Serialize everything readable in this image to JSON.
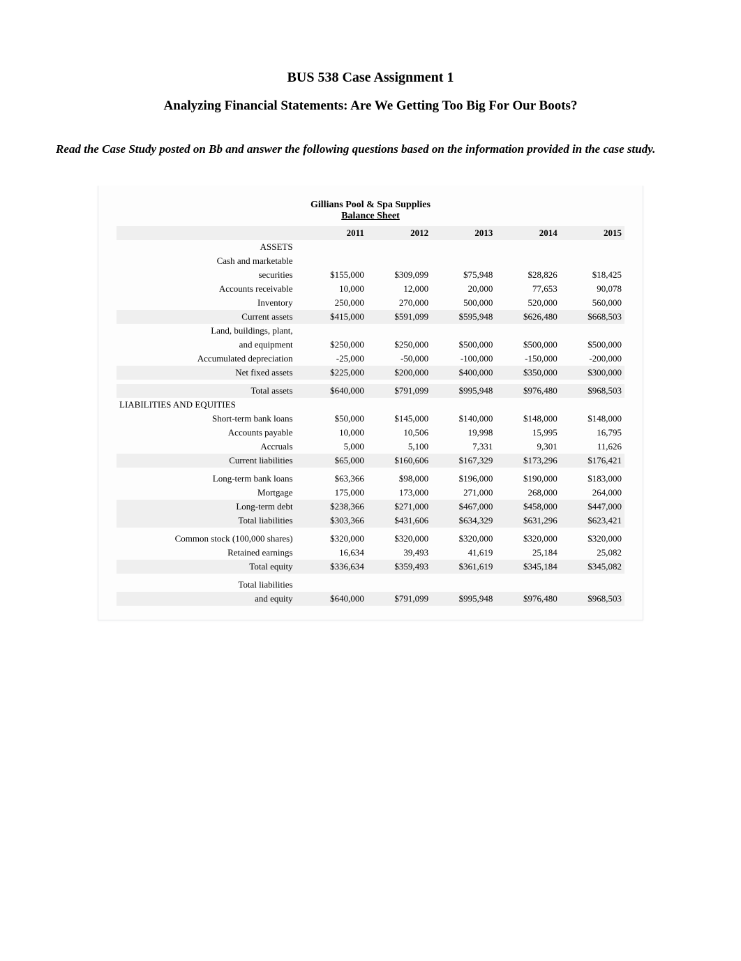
{
  "doc": {
    "title": "BUS 538 Case Assignment 1",
    "subtitle": "Analyzing Financial Statements: Are We Getting Too Big For Our Boots?",
    "instructions": "Read the Case Study posted on Bb and answer the following questions based on the information provided in the case study."
  },
  "sheet": {
    "company": "Gillians Pool & Spa Supplies",
    "heading": "Balance Sheet",
    "years": [
      "2011",
      "2012",
      "2013",
      "2014",
      "2015"
    ],
    "assets_label": "ASSETS",
    "liab_label": "LIABILITIES AND EQUITIES",
    "rows": {
      "cash_label1": "Cash and marketable",
      "cash_label2": "securities",
      "cash": [
        "$155,000",
        "$309,099",
        "$75,948",
        "$28,826",
        "$18,425"
      ],
      "ar_label": "Accounts receivable",
      "ar": [
        "10,000",
        "12,000",
        "20,000",
        "77,653",
        "90,078"
      ],
      "inv_label": "Inventory",
      "inv": [
        "250,000",
        "270,000",
        "500,000",
        "520,000",
        "560,000"
      ],
      "ca_label": "Current assets",
      "ca": [
        "$415,000",
        "$591,099",
        "$595,948",
        "$626,480",
        "$668,503"
      ],
      "ppe_label1": "Land, buildings, plant,",
      "ppe_label2": "and equipment",
      "ppe": [
        "$250,000",
        "$250,000",
        "$500,000",
        "$500,000",
        "$500,000"
      ],
      "dep_label": "Accumulated depreciation",
      "dep": [
        "-25,000",
        "-50,000",
        "-100,000",
        "-150,000",
        "-200,000"
      ],
      "nfa_label": "Net fixed assets",
      "nfa": [
        "$225,000",
        "$200,000",
        "$400,000",
        "$350,000",
        "$300,000"
      ],
      "ta_label": "Total assets",
      "ta": [
        "$640,000",
        "$791,099",
        "$995,948",
        "$976,480",
        "$968,503"
      ],
      "stbl_label": "Short-term bank loans",
      "stbl": [
        "$50,000",
        "$145,000",
        "$140,000",
        "$148,000",
        "$148,000"
      ],
      "ap_label": "Accounts payable",
      "ap": [
        "10,000",
        "10,506",
        "19,998",
        "15,995",
        "16,795"
      ],
      "acc_label": "Accruals",
      "acc": [
        "5,000",
        "5,100",
        "7,331",
        "9,301",
        "11,626"
      ],
      "cl_label": "Current liabilities",
      "cl": [
        "$65,000",
        "$160,606",
        "$167,329",
        "$173,296",
        "$176,421"
      ],
      "ltbl_label": "Long-term bank loans",
      "ltbl": [
        "$63,366",
        "$98,000",
        "$196,000",
        "$190,000",
        "$183,000"
      ],
      "mort_label": "Mortgage",
      "mort": [
        "175,000",
        "173,000",
        "271,000",
        "268,000",
        "264,000"
      ],
      "ltd_label": "Long-term debt",
      "ltd": [
        "$238,366",
        "$271,000",
        "$467,000",
        "$458,000",
        "$447,000"
      ],
      "tl_label": "Total liabilities",
      "tl": [
        "$303,366",
        "$431,606",
        "$634,329",
        "$631,296",
        "$623,421"
      ],
      "cs_label": "Common stock (100,000 shares)",
      "cs": [
        "$320,000",
        "$320,000",
        "$320,000",
        "$320,000",
        "$320,000"
      ],
      "re_label": "Retained earnings",
      "re": [
        "16,634",
        "39,493",
        "41,619",
        "25,184",
        "25,082"
      ],
      "te_label": "Total equity",
      "te": [
        "$336,634",
        "$359,493",
        "$361,619",
        "$345,184",
        "$345,082"
      ],
      "tle_label1": "Total liabilities",
      "tle_label2": "and equity",
      "tle": [
        "$640,000",
        "$791,099",
        "$995,948",
        "$976,480",
        "$968,503"
      ]
    }
  },
  "style": {
    "shade_bg": "#efefef",
    "border_color": "#e6e8ea",
    "body_bg": "#ffffff"
  }
}
